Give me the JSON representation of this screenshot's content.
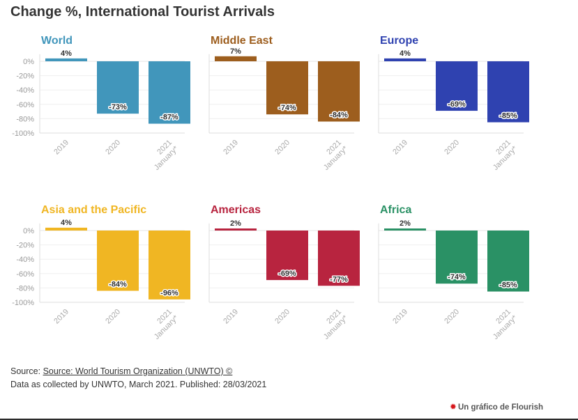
{
  "title": "Change %, International Tourist Arrivals",
  "footer": {
    "source_prefix": "Source: ",
    "source_link": "Source: World Tourism Organization (UNWTO) ©",
    "note": "Data as collected by UNWTO, March 2021. Published: 28/03/2021"
  },
  "branding": {
    "label": "Un gráfico de Flourish"
  },
  "chart_data": [
    {
      "type": "bar",
      "title": "World",
      "color": "#4196bb",
      "categories": [
        "2019",
        "2020",
        "2021 January*"
      ],
      "values": [
        4,
        -73,
        -87
      ],
      "value_labels": [
        "4%",
        "-73%",
        "-87%"
      ],
      "ylim": [
        -100,
        10
      ],
      "yticks": [
        "0%",
        "-20%",
        "-40%",
        "-60%",
        "-80%",
        "-100%"
      ]
    },
    {
      "type": "bar",
      "title": "Middle East",
      "color": "#9d5e1e",
      "categories": [
        "2019",
        "2020",
        "2021 January*"
      ],
      "values": [
        7,
        -74,
        -84
      ],
      "value_labels": [
        "7%",
        "-74%",
        "-84%"
      ],
      "ylim": [
        -100,
        10
      ]
    },
    {
      "type": "bar",
      "title": "Europe",
      "color": "#2f42b0",
      "categories": [
        "2019",
        "2020",
        "2021 January*"
      ],
      "values": [
        4,
        -69,
        -85
      ],
      "value_labels": [
        "4%",
        "-69%",
        "-85%"
      ],
      "ylim": [
        -100,
        10
      ]
    },
    {
      "type": "bar",
      "title": "Asia and the Pacific",
      "color": "#f0b623",
      "categories": [
        "2019",
        "2020",
        "2021 January*"
      ],
      "values": [
        4,
        -84,
        -96
      ],
      "value_labels": [
        "4%",
        "-84%",
        "-96%"
      ],
      "ylim": [
        -100,
        10
      ],
      "yticks": [
        "0%",
        "-20%",
        "-40%",
        "-60%",
        "-80%",
        "-100%"
      ]
    },
    {
      "type": "bar",
      "title": "Americas",
      "color": "#b8243f",
      "categories": [
        "2019",
        "2020",
        "2021 January*"
      ],
      "values": [
        2,
        -69,
        -77
      ],
      "value_labels": [
        "2%",
        "-69%",
        "-77%"
      ],
      "ylim": [
        -100,
        10
      ]
    },
    {
      "type": "bar",
      "title": "Africa",
      "color": "#2a9165",
      "categories": [
        "2019",
        "2020",
        "2021 January*"
      ],
      "values": [
        2,
        -74,
        -85
      ],
      "value_labels": [
        "2%",
        "-74%",
        "-85%"
      ],
      "ylim": [
        -100,
        10
      ]
    }
  ]
}
